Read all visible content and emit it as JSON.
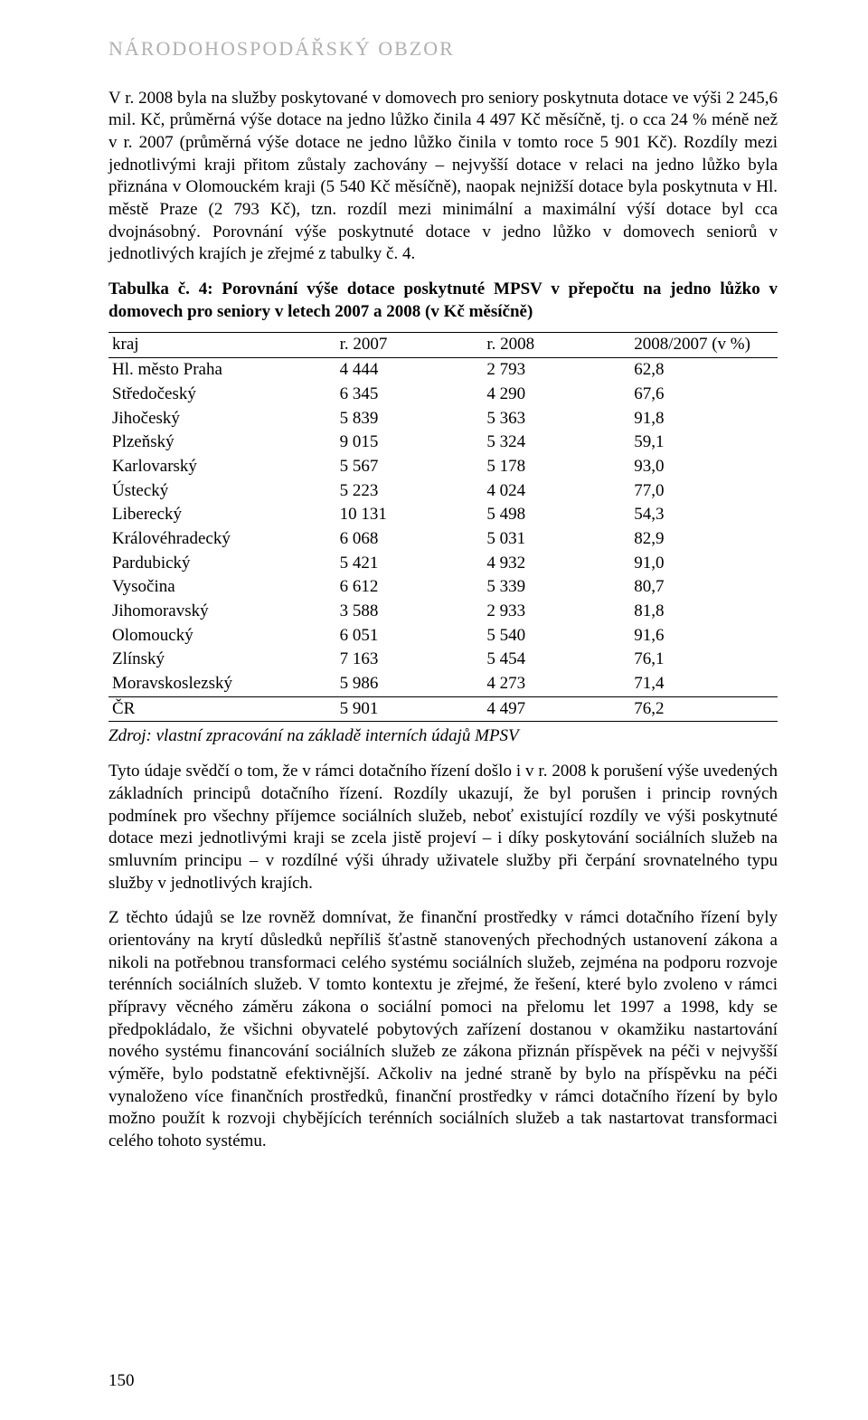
{
  "header": "NÁRODOHOSPODÁŘSKÝ OBZOR",
  "para1": "V r. 2008 byla na služby poskytované v domovech pro seniory poskytnuta dotace ve výši 2 245,6 mil. Kč, průměrná výše dotace na jedno lůžko činila 4 497 Kč měsíčně, tj. o cca 24 % méně než v r. 2007 (průměrná výše dotace ne jedno lůžko činila v tomto roce 5 901 Kč). Rozdíly mezi jednotlivými kraji přitom zůstaly zachovány – nejvyšší dotace v relaci na jedno lůžko byla přiznána v Olomouckém kraji (5 540 Kč měsíčně), naopak nejnižší dotace byla poskytnuta v Hl. městě Praze (2 793 Kč), tzn. rozdíl mezi minimální a maximální výší dotace byl cca dvojnásobný. Porovnání výše poskytnuté dotace v jedno lůžko v domovech seniorů v jednotlivých krajích je zřejmé z tabulky č. 4.",
  "table_title": "Tabulka č. 4: Porovnání výše dotace poskytnuté MPSV v přepočtu na jedno lůžko v domovech pro seniory v letech 2007 a 2008 (v Kč měsíčně)",
  "table": {
    "columns": [
      "kraj",
      "r. 2007",
      "r. 2008",
      "2008/2007 (v %)"
    ],
    "rows": [
      [
        "Hl. město Praha",
        "4 444",
        "2 793",
        "62,8"
      ],
      [
        "Středočeský",
        "6 345",
        "4 290",
        "67,6"
      ],
      [
        "Jihočeský",
        "5 839",
        "5 363",
        "91,8"
      ],
      [
        "Plzeňský",
        "9 015",
        "5 324",
        "59,1"
      ],
      [
        "Karlovarský",
        "5 567",
        "5 178",
        "93,0"
      ],
      [
        "Ústecký",
        "5 223",
        "4 024",
        "77,0"
      ],
      [
        "Liberecký",
        "10 131",
        "5 498",
        "54,3"
      ],
      [
        "Královéhradecký",
        "6 068",
        "5 031",
        "82,9"
      ],
      [
        "Pardubický",
        "5 421",
        "4 932",
        "91,0"
      ],
      [
        "Vysočina",
        "6 612",
        "5 339",
        "80,7"
      ],
      [
        "Jihomoravský",
        "3 588",
        "2 933",
        "81,8"
      ],
      [
        "Olomoucký",
        "6 051",
        "5 540",
        "91,6"
      ],
      [
        "Zlínský",
        "7 163",
        "5 454",
        "76,1"
      ],
      [
        "Moravskoslezský",
        "5 986",
        "4 273",
        "71,4"
      ]
    ],
    "total": [
      "ČR",
      "5 901",
      "4 497",
      "76,2"
    ]
  },
  "source": "Zdroj: vlastní zpracování na základě interních údajů MPSV",
  "para2": "Tyto údaje svědčí o tom, že v rámci dotačního řízení došlo i v r. 2008 k porušení výše uvedených základních principů dotačního řízení. Rozdíly ukazují, že byl porušen i princip rovných podmínek pro všechny příjemce sociálních služeb, neboť existující rozdíly ve výši poskytnuté dotace mezi jednotlivými kraji se zcela jistě projeví – i díky poskytování sociálních služeb na smluvním principu – v rozdílné výši úhrady uživatele služby při čerpání srovnatelného typu služby v jednotlivých krajích.",
  "para3": "Z těchto údajů se lze rovněž domnívat, že finanční prostředky v rámci dotačního řízení byly orientovány na krytí důsledků nepříliš šťastně stanovených přechodných ustanovení zákona a nikoli na potřebnou transformaci celého systému sociálních služeb, zejména na podporu rozvoje terénních sociálních služeb. V tomto kontextu je zřejmé, že řešení, které bylo zvoleno v rámci přípravy věcného záměru zákona o sociální pomoci na přelomu let 1997 a 1998, kdy se předpokládalo, že všichni obyvatelé pobytových zařízení dostanou v okamžiku nastartování nového systému financování sociálních služeb ze zákona přiznán příspěvek na péči v nejvyšší výměře, bylo podstatně efektivnější. Ačkoliv na jedné straně by bylo na příspěvku na péči vynaloženo více finančních prostředků, finanční prostředky v rámci dotačního řízení by bylo možno použít k rozvoji chybějících terénních sociálních služeb a tak nastartovat transformaci celého tohoto systému.",
  "page_number": "150"
}
